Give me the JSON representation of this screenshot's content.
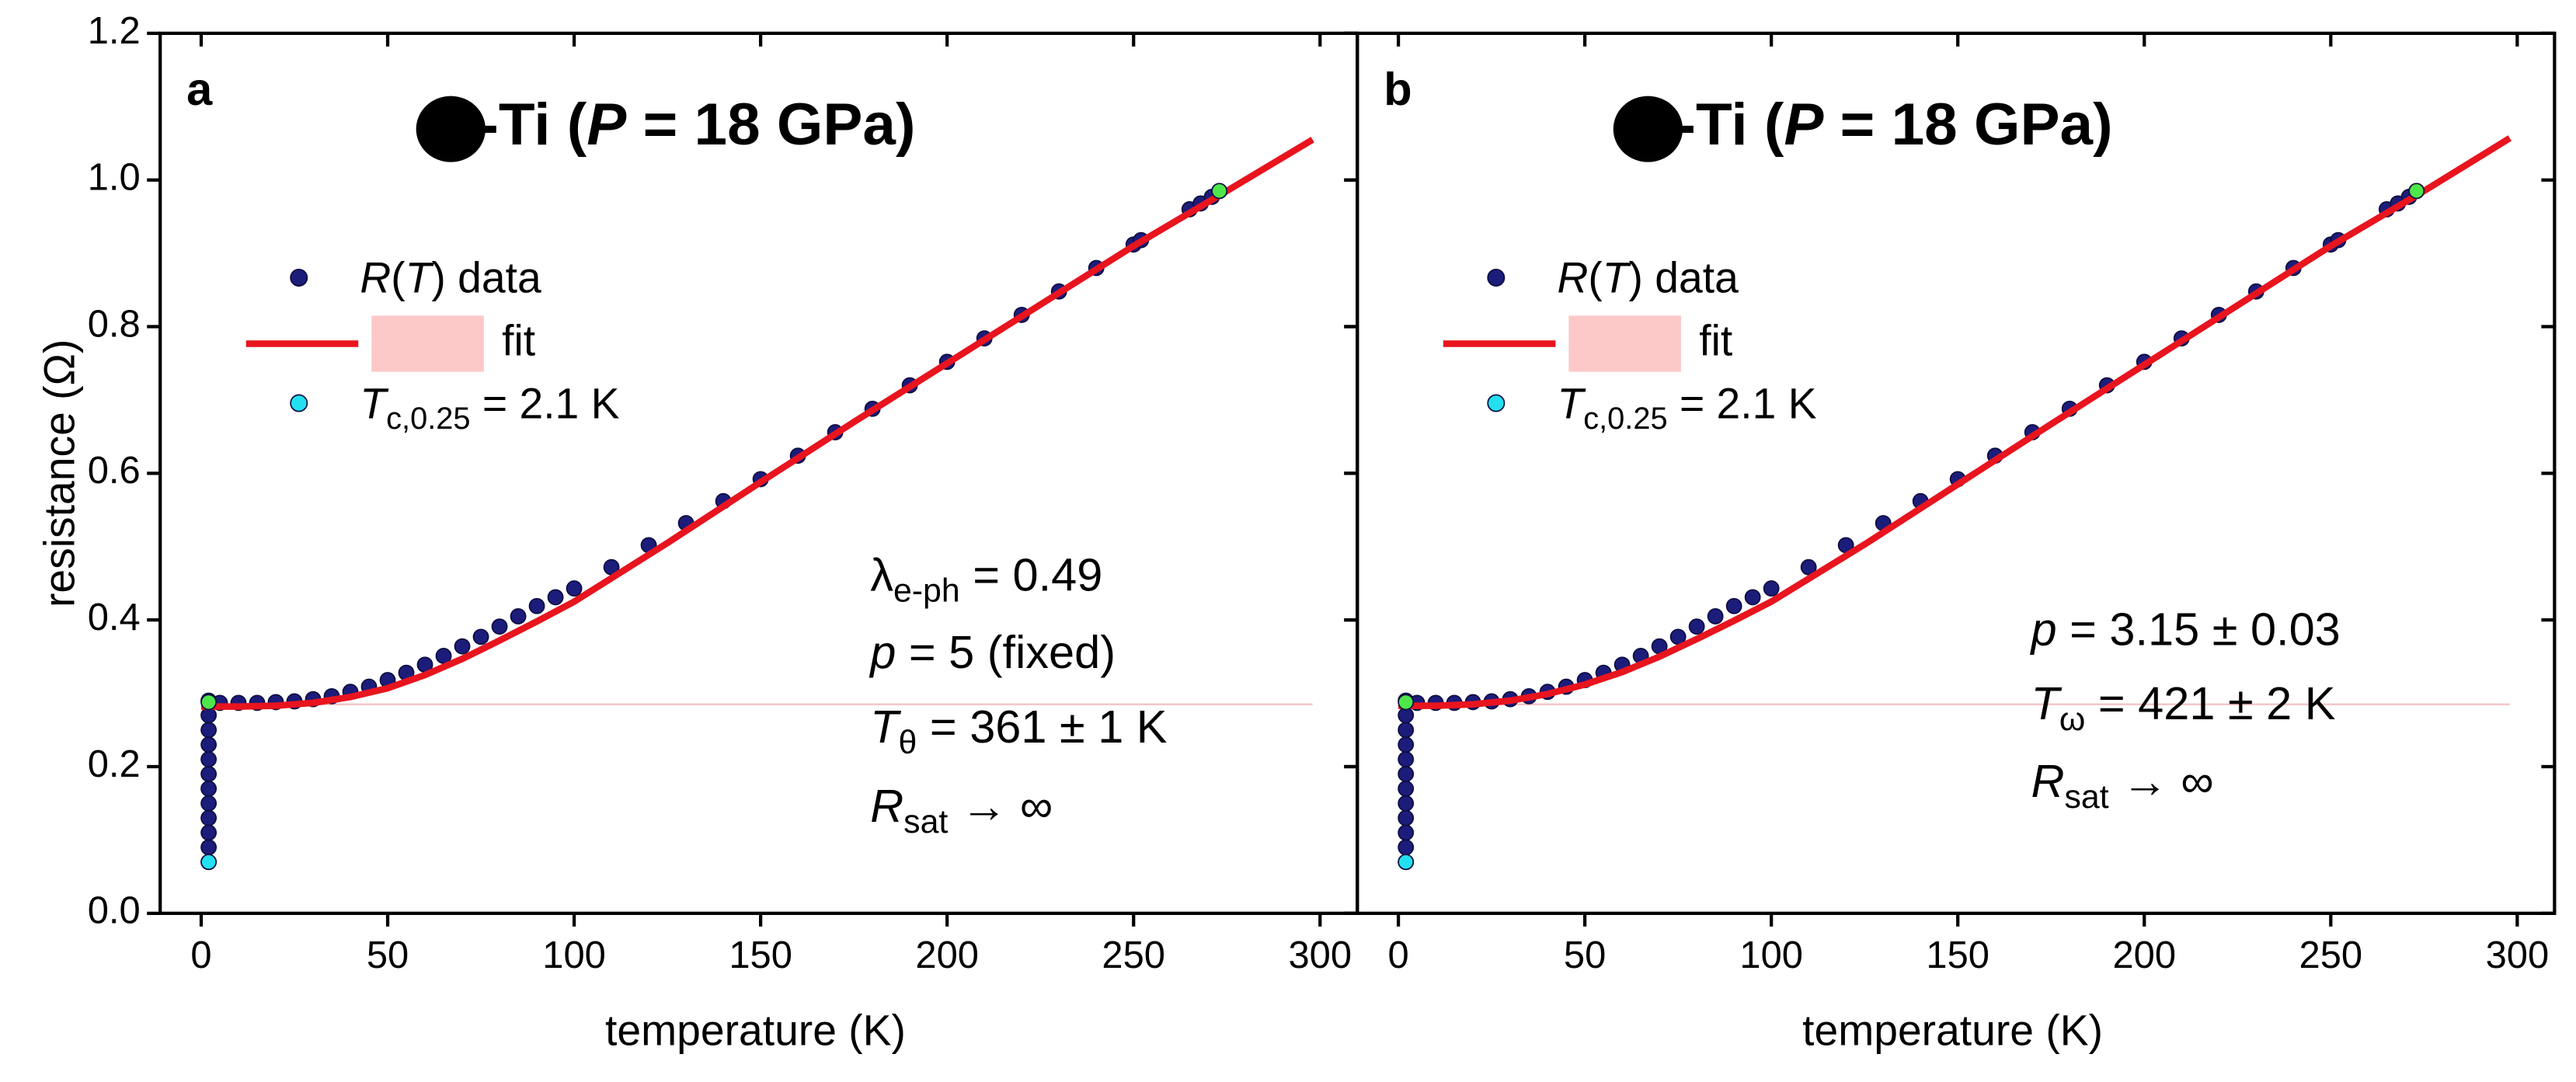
{
  "chart_data": [
    {
      "type": "scatter",
      "panel_label": "a",
      "title": [
        {
          "t": "-Ti ("
        },
        {
          "t": "P",
          "i": true
        },
        {
          "t": " = 18 GPa)"
        }
      ],
      "xlabel": "temperature (K)",
      "ylabel": "resistance (Ω)",
      "xlim": [
        -11,
        310
      ],
      "xticks": [
        0,
        50,
        100,
        150,
        200,
        250,
        300
      ],
      "ylim": [
        0,
        1.2
      ],
      "yticks": [
        {
          "value": 0,
          "label": "0.0"
        },
        0.2,
        0.4,
        0.6,
        0.8,
        {
          "value": 1,
          "label": "1.0"
        },
        1.2
      ],
      "legend_position": "upper left",
      "series": [
        {
          "name": [
            {
              "t": "R",
              "i": true
            },
            {
              "t": "("
            },
            {
              "t": "T",
              "i": true
            },
            {
              "t": ") data"
            }
          ],
          "mode": "markers",
          "color": "#1c1c7a",
          "x": [
            2,
            2,
            2,
            2,
            2,
            2,
            2,
            2,
            2,
            2,
            2,
            2,
            5,
            10,
            15,
            20,
            25,
            30,
            35,
            40,
            45,
            50,
            55,
            60,
            65,
            70,
            75,
            80,
            85,
            90,
            95,
            100,
            110,
            120,
            130,
            140,
            150,
            160,
            170,
            180,
            190,
            200,
            210,
            220,
            230,
            240,
            250,
            252,
            265,
            268,
            271,
            273
          ],
          "values": [
            0.07,
            0.09,
            0.11,
            0.13,
            0.15,
            0.17,
            0.19,
            0.21,
            0.23,
            0.25,
            0.27,
            0.29,
            0.287,
            0.287,
            0.287,
            0.288,
            0.289,
            0.292,
            0.296,
            0.302,
            0.309,
            0.318,
            0.328,
            0.339,
            0.351,
            0.364,
            0.377,
            0.391,
            0.405,
            0.419,
            0.431,
            0.443,
            0.472,
            0.502,
            0.532,
            0.562,
            0.592,
            0.624,
            0.656,
            0.688,
            0.72,
            0.752,
            0.784,
            0.816,
            0.848,
            0.88,
            0.912,
            0.918,
            0.96,
            0.968,
            0.977,
            0.985
          ]
        },
        {
          "name": [
            {
              "t": "fit"
            }
          ],
          "mode": "line",
          "color": "#e8141e",
          "x": [
            0,
            10,
            20,
            30,
            40,
            50,
            60,
            70,
            80,
            90,
            100,
            125,
            150,
            175,
            200,
            225,
            250,
            275,
            298
          ],
          "values": [
            0.282,
            0.282,
            0.283,
            0.287,
            0.295,
            0.307,
            0.325,
            0.347,
            0.372,
            0.398,
            0.425,
            0.505,
            0.588,
            0.67,
            0.75,
            0.83,
            0.91,
            0.985,
            1.055
          ]
        },
        {
          "name": [
            {
              "t": "T",
              "i": true
            },
            {
              "t": "c,0.25",
              "sub": true
            },
            {
              "t": " = 2.1 K"
            }
          ],
          "mode": "markers",
          "color": "#22e0f0",
          "x": [
            2
          ],
          "values": [
            0.07
          ]
        },
        {
          "mode": "markers",
          "color": "#4ee64a",
          "x": [
            2,
            273
          ],
          "values": [
            0.288,
            0.985
          ]
        },
        {
          "mode": "thin-line",
          "color": "#f5c6c6",
          "x": [
            0,
            298
          ],
          "values": [
            0.285,
            0.285
          ]
        }
      ],
      "annotations": [
        [
          {
            "t": "λ"
          },
          {
            "t": "e-ph",
            "sub": true
          },
          {
            "t": " = 0.49"
          }
        ],
        [
          {
            "t": "p",
            "i": true
          },
          {
            "t": " = 5 (fixed)"
          }
        ],
        [
          {
            "t": "T",
            "i": true
          },
          {
            "t": "θ",
            "sub": true
          },
          {
            "t": " = 361 ± 1 K"
          }
        ],
        [
          {
            "t": "R",
            "i": true
          },
          {
            "t": "sat",
            "sub": true
          },
          {
            "t": " → ∞"
          }
        ]
      ]
    },
    {
      "type": "scatter",
      "panel_label": "b",
      "title": [
        {
          "t": "-Ti ("
        },
        {
          "t": "P",
          "i": true
        },
        {
          "t": " = 18 GPa)"
        }
      ],
      "xlabel": "temperature (K)",
      "xlim": [
        -11,
        310
      ],
      "xticks": [
        0,
        50,
        100,
        150,
        200,
        250,
        300
      ],
      "ylim": [
        0,
        1.2
      ],
      "yticks": [
        0,
        0.2,
        0.4,
        0.6,
        0.8,
        1,
        1.2
      ],
      "ytick_labels": false,
      "legend_position": "upper left",
      "series": [
        {
          "name": [
            {
              "t": "R",
              "i": true
            },
            {
              "t": "("
            },
            {
              "t": "T",
              "i": true
            },
            {
              "t": ") data"
            }
          ],
          "mode": "markers",
          "color": "#1c1c7a",
          "x": [
            2,
            2,
            2,
            2,
            2,
            2,
            2,
            2,
            2,
            2,
            2,
            2,
            5,
            10,
            15,
            20,
            25,
            30,
            35,
            40,
            45,
            50,
            55,
            60,
            65,
            70,
            75,
            80,
            85,
            90,
            95,
            100,
            110,
            120,
            130,
            140,
            150,
            160,
            170,
            180,
            190,
            200,
            210,
            220,
            230,
            240,
            250,
            252,
            265,
            268,
            271,
            273
          ],
          "values": [
            0.07,
            0.09,
            0.11,
            0.13,
            0.15,
            0.17,
            0.19,
            0.21,
            0.23,
            0.25,
            0.27,
            0.29,
            0.287,
            0.287,
            0.287,
            0.288,
            0.289,
            0.292,
            0.296,
            0.302,
            0.309,
            0.318,
            0.328,
            0.339,
            0.351,
            0.364,
            0.377,
            0.391,
            0.405,
            0.419,
            0.431,
            0.443,
            0.472,
            0.502,
            0.532,
            0.562,
            0.592,
            0.624,
            0.656,
            0.688,
            0.72,
            0.752,
            0.784,
            0.816,
            0.848,
            0.88,
            0.912,
            0.918,
            0.96,
            0.968,
            0.977,
            0.985
          ]
        },
        {
          "name": [
            {
              "t": "fit"
            }
          ],
          "mode": "line",
          "color": "#e8141e",
          "x": [
            0,
            10,
            20,
            30,
            40,
            50,
            60,
            70,
            80,
            90,
            100,
            125,
            150,
            175,
            200,
            225,
            250,
            275,
            298
          ],
          "values": [
            0.283,
            0.283,
            0.285,
            0.29,
            0.299,
            0.312,
            0.329,
            0.35,
            0.374,
            0.399,
            0.425,
            0.503,
            0.585,
            0.667,
            0.748,
            0.829,
            0.91,
            0.985,
            1.057
          ]
        },
        {
          "name": [
            {
              "t": "T",
              "i": true
            },
            {
              "t": "c,0.25",
              "sub": true
            },
            {
              "t": " = 2.1 K"
            }
          ],
          "mode": "markers",
          "color": "#22e0f0",
          "x": [
            2
          ],
          "values": [
            0.07
          ]
        },
        {
          "mode": "markers",
          "color": "#4ee64a",
          "x": [
            2,
            273
          ],
          "values": [
            0.288,
            0.985
          ]
        },
        {
          "mode": "thin-line",
          "color": "#f5c6c6",
          "x": [
            0,
            298
          ],
          "values": [
            0.285,
            0.285
          ]
        }
      ],
      "annotations": [
        [
          {
            "t": "p",
            "i": true
          },
          {
            "t": " = 3.15  ± 0.03"
          }
        ],
        [
          {
            "t": "T",
            "i": true
          },
          {
            "t": "ω",
            "sub": true
          },
          {
            "t": " = 421 ± 2 K"
          }
        ],
        [
          {
            "t": "R",
            "i": true
          },
          {
            "t": "sat",
            "sub": true
          },
          {
            "t": " → ∞"
          }
        ]
      ]
    }
  ]
}
